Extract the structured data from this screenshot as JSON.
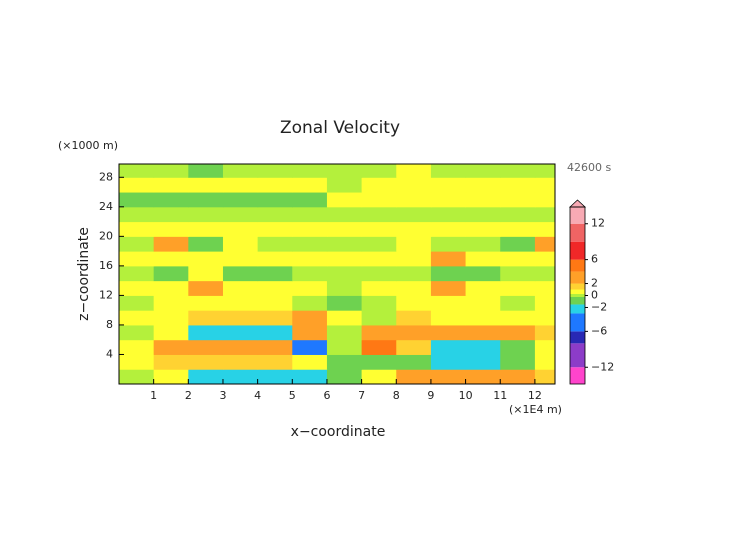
{
  "chart_data": {
    "type": "heatmap",
    "title": "Zonal Velocity",
    "y_unit": "(×1000 m)",
    "x_unit": "(×1E4 m)",
    "time_label": "42600 s",
    "x_label": "x−coordinate",
    "y_label": "z−coordinate",
    "xlim": [
      0,
      12.58
    ],
    "ylim": [
      0,
      29.8
    ],
    "xticks": [
      1,
      2,
      3,
      4,
      5,
      6,
      7,
      8,
      9,
      10,
      11,
      12
    ],
    "yticks": [
      4,
      8,
      12,
      16,
      20,
      24,
      28
    ],
    "x": [
      0.5,
      1.5,
      2.5,
      3.5,
      4.5,
      5.5,
      6.5,
      7.5,
      8.5,
      9.5,
      10.5,
      11.5,
      12.5
    ],
    "y": [
      1,
      3,
      5,
      7,
      9,
      11,
      13,
      15,
      17,
      19,
      21,
      23,
      25,
      27,
      29
    ],
    "z": [
      [
        0,
        0.5,
        -2,
        -3,
        -3,
        -2,
        -0.5,
        0.5,
        2,
        2,
        2,
        2,
        1.5
      ],
      [
        0.5,
        1,
        1,
        1.5,
        1,
        0.5,
        -1,
        -0.5,
        -1,
        -2,
        -2,
        -1,
        0.5
      ],
      [
        0.5,
        2,
        3,
        3,
        3,
        -5,
        0,
        5,
        1,
        -2,
        -2,
        -1,
        0.5
      ],
      [
        0,
        0.5,
        -2,
        -3,
        -3,
        2,
        0,
        3,
        3,
        3,
        3,
        2.5,
        1
      ],
      [
        0.5,
        0.5,
        1,
        1,
        1.5,
        3,
        0.5,
        0,
        1,
        0.5,
        0.5,
        0.5,
        0.5
      ],
      [
        0,
        0.5,
        0.5,
        0.5,
        0.5,
        0,
        -0.5,
        0,
        0.5,
        0.5,
        0.5,
        0,
        0.5
      ],
      [
        0.5,
        0.5,
        2,
        0.5,
        0.5,
        0.5,
        0,
        0.5,
        0.5,
        2,
        0.5,
        0.5,
        0.5
      ],
      [
        0,
        -0.5,
        0.5,
        -1.5,
        -0.5,
        0,
        0,
        0,
        0,
        -0.5,
        -1.5,
        0,
        0
      ],
      [
        0.5,
        0.5,
        0.5,
        0.5,
        0.5,
        0.5,
        0.5,
        0.5,
        0.5,
        2,
        0.5,
        0.5,
        0.5
      ],
      [
        0,
        2,
        -0.5,
        0.5,
        0,
        0,
        0,
        0,
        0.5,
        0,
        0,
        -1,
        2
      ],
      [
        0.5,
        0.5,
        0.5,
        0.5,
        0.5,
        0.5,
        0.5,
        0.5,
        0.5,
        0.5,
        0.5,
        0.5,
        0.5
      ],
      [
        0,
        0,
        0,
        0,
        0,
        0,
        0,
        0,
        0,
        0,
        0,
        0,
        0
      ],
      [
        -0.5,
        -0.5,
        -0.5,
        -0.5,
        -0.5,
        -0.5,
        0.5,
        0.5,
        0.5,
        0.5,
        0.5,
        0.5,
        0.5
      ],
      [
        0.5,
        0.5,
        0.5,
        0.5,
        0.5,
        0.5,
        0,
        0.5,
        0.5,
        0.5,
        0.5,
        0.5,
        0.5
      ],
      [
        0,
        0,
        -0.5,
        0,
        0,
        0,
        0,
        0,
        0.5,
        0,
        0,
        0,
        0
      ]
    ],
    "clim": [
      -14.8,
      14.8
    ],
    "levels": [
      -14.8,
      -12,
      -8,
      -6,
      -3,
      -1.5,
      -0.25,
      0.25,
      1,
      2,
      4,
      6,
      9,
      12,
      14.8
    ],
    "colors": [
      "#ff44cc",
      "#8c3cc8",
      "#2828b4",
      "#1e78ff",
      "#28d2e6",
      "#6ed250",
      "#b4f03c",
      "#ffff32",
      "#ffd232",
      "#ffa028",
      "#ff7814",
      "#f02828",
      "#f06464",
      "#f8aab4"
    ],
    "cticks": [
      {
        "value": -12,
        "label": "−12"
      },
      {
        "value": -6,
        "label": "−6"
      },
      {
        "value": -2,
        "label": "−2"
      },
      0,
      2,
      6,
      12
    ]
  }
}
